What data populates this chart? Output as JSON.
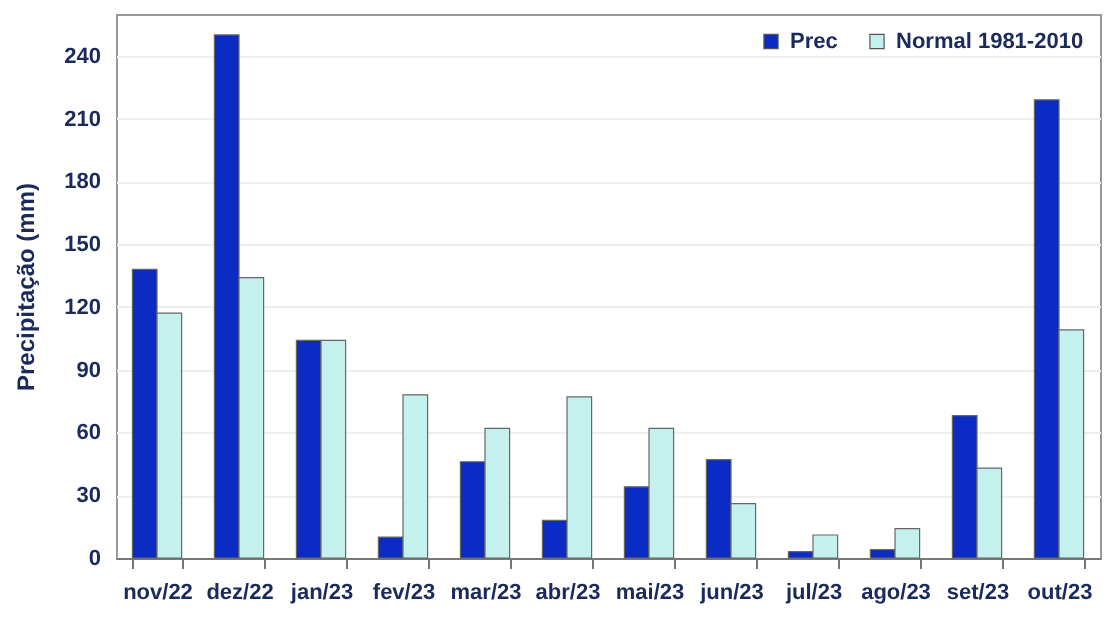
{
  "chart_data": {
    "type": "bar",
    "ylabel": "Precipitação (mm)",
    "categories": [
      "nov/22",
      "dez/22",
      "jan/23",
      "fev/23",
      "mar/23",
      "abr/23",
      "mai/23",
      "jun/23",
      "jul/23",
      "ago/23",
      "set/23",
      "out/23"
    ],
    "series": [
      {
        "name": "Prec",
        "color": "#0a2cc4",
        "values": [
          138,
          250,
          104,
          10,
          46,
          18,
          34,
          47,
          3,
          4,
          68,
          219
        ]
      },
      {
        "name": "Normal 1981-2010",
        "color": "#c4f0ee",
        "values": [
          117,
          134,
          104,
          78,
          62,
          77,
          62,
          26,
          11,
          14,
          43,
          109
        ]
      }
    ],
    "ylim": [
      0,
      260
    ],
    "yticks": [
      0,
      30,
      60,
      90,
      120,
      150,
      180,
      210,
      240
    ],
    "grid": "y",
    "legend": "top right"
  }
}
